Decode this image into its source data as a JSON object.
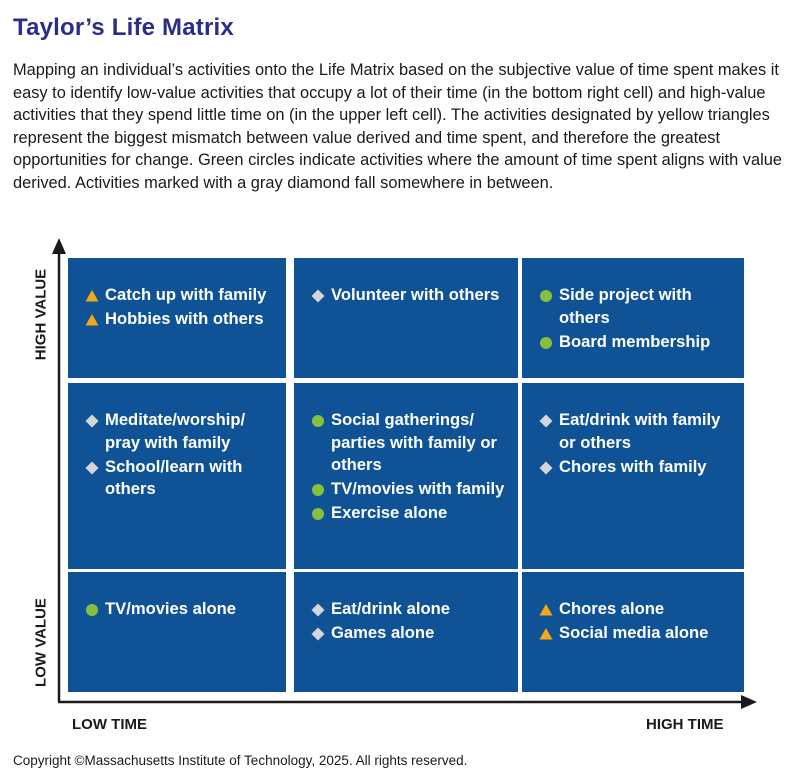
{
  "title": "Taylor’s Life Matrix",
  "description": "Mapping an individual’s activities onto the Life Matrix based on the subjective value of time spent makes it easy to identify low-value activities that occupy a lot of their time (in the bottom right cell) and high-value activities that they spend little time on (in the upper left cell). The activities designated by yellow triangles represent the biggest mismatch between value derived and time spent, and therefore the greatest opportunities for change. Green circles indicate activities where the amount of time spent aligns with value derived. Activities marked with a gray diamond fall somewhere in between.",
  "axes": {
    "y_high": "HIGH VALUE",
    "y_low": "LOW VALUE",
    "x_low": "LOW TIME",
    "x_high": "HIGH TIME"
  },
  "colors": {
    "cell": "#0f5396",
    "triangle": "#f2a818",
    "circle": "#86c03f",
    "diamond": "#d4d6dc",
    "title": "#2b2d8a"
  },
  "cells": [
    {
      "items": [
        {
          "marker": "triangle",
          "label": "Catch up with family"
        },
        {
          "marker": "triangle",
          "label": "Hobbies with others"
        }
      ]
    },
    {
      "items": [
        {
          "marker": "diamond",
          "label": "Volunteer with others"
        }
      ]
    },
    {
      "items": [
        {
          "marker": "circle",
          "label": "Side project with others"
        },
        {
          "marker": "circle",
          "label": "Board membership"
        }
      ]
    },
    {
      "items": [
        {
          "marker": "diamond",
          "label": "Meditate/worship/ pray with family"
        },
        {
          "marker": "diamond",
          "label": "School/learn with others"
        }
      ]
    },
    {
      "items": [
        {
          "marker": "circle",
          "label": "Social gatherings/ parties with family or others"
        },
        {
          "marker": "circle",
          "label": "TV/movies with family"
        },
        {
          "marker": "circle",
          "label": "Exercise alone"
        }
      ]
    },
    {
      "items": [
        {
          "marker": "diamond",
          "label": "Eat/drink with family or others"
        },
        {
          "marker": "diamond",
          "label": "Chores with family"
        }
      ]
    },
    {
      "items": [
        {
          "marker": "circle",
          "label": "TV/movies alone"
        }
      ]
    },
    {
      "items": [
        {
          "marker": "diamond",
          "label": "Eat/drink alone"
        },
        {
          "marker": "diamond",
          "label": "Games alone"
        }
      ]
    },
    {
      "items": [
        {
          "marker": "triangle",
          "label": "Chores alone"
        },
        {
          "marker": "triangle",
          "label": "Social media alone"
        }
      ]
    }
  ],
  "copyright": "Copyright ©Massachusetts Institute of Technology, 2025. All rights reserved."
}
